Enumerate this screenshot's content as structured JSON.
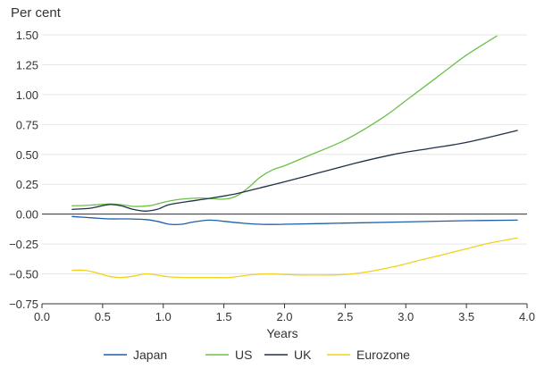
{
  "chart_data": {
    "type": "line",
    "ylabel": "Per cent",
    "xlabel": "Years",
    "xlim": [
      0.0,
      4.0
    ],
    "ylim": [
      -0.75,
      1.5
    ],
    "xticks": [
      "0.0",
      "0.5",
      "1.0",
      "1.5",
      "2.0",
      "2.5",
      "3.0",
      "3.5",
      "4.0"
    ],
    "yticks": [
      "1.50",
      "1.25",
      "1.00",
      "0.75",
      "0.50",
      "0.25",
      "0.00",
      "−0.25",
      "−0.50",
      "−0.75"
    ],
    "grid": "horizontal",
    "zero_line": true,
    "legend_position": "bottom",
    "series": [
      {
        "name": "Japan",
        "color": "#1f5fa8",
        "points": [
          [
            0.25,
            -0.02
          ],
          [
            0.4,
            -0.03
          ],
          [
            0.55,
            -0.04
          ],
          [
            0.7,
            -0.04
          ],
          [
            0.85,
            -0.045
          ],
          [
            0.95,
            -0.06
          ],
          [
            1.05,
            -0.085
          ],
          [
            1.15,
            -0.085
          ],
          [
            1.25,
            -0.065
          ],
          [
            1.38,
            -0.05
          ],
          [
            1.5,
            -0.06
          ],
          [
            1.65,
            -0.075
          ],
          [
            1.8,
            -0.085
          ],
          [
            2.0,
            -0.085
          ],
          [
            2.5,
            -0.075
          ],
          [
            3.0,
            -0.065
          ],
          [
            3.5,
            -0.055
          ],
          [
            3.92,
            -0.05
          ]
        ]
      },
      {
        "name": "US",
        "color": "#6cc04a",
        "points": [
          [
            0.25,
            0.07
          ],
          [
            0.4,
            0.075
          ],
          [
            0.55,
            0.085
          ],
          [
            0.65,
            0.08
          ],
          [
            0.75,
            0.065
          ],
          [
            0.88,
            0.07
          ],
          [
            0.95,
            0.085
          ],
          [
            1.05,
            0.11
          ],
          [
            1.15,
            0.125
          ],
          [
            1.3,
            0.135
          ],
          [
            1.4,
            0.13
          ],
          [
            1.5,
            0.125
          ],
          [
            1.6,
            0.15
          ],
          [
            1.7,
            0.22
          ],
          [
            1.8,
            0.31
          ],
          [
            1.9,
            0.37
          ],
          [
            2.0,
            0.405
          ],
          [
            2.2,
            0.49
          ],
          [
            2.5,
            0.62
          ],
          [
            2.8,
            0.8
          ],
          [
            3.0,
            0.95
          ],
          [
            3.25,
            1.14
          ],
          [
            3.5,
            1.33
          ],
          [
            3.75,
            1.49
          ]
        ]
      },
      {
        "name": "UK",
        "color": "#1f3048",
        "points": [
          [
            0.25,
            0.04
          ],
          [
            0.4,
            0.05
          ],
          [
            0.55,
            0.08
          ],
          [
            0.65,
            0.07
          ],
          [
            0.75,
            0.04
          ],
          [
            0.85,
            0.025
          ],
          [
            0.95,
            0.04
          ],
          [
            1.05,
            0.08
          ],
          [
            1.2,
            0.105
          ],
          [
            1.4,
            0.135
          ],
          [
            1.6,
            0.17
          ],
          [
            1.8,
            0.22
          ],
          [
            2.0,
            0.27
          ],
          [
            2.3,
            0.35
          ],
          [
            2.6,
            0.43
          ],
          [
            2.9,
            0.5
          ],
          [
            3.2,
            0.55
          ],
          [
            3.5,
            0.6
          ],
          [
            3.92,
            0.7
          ]
        ]
      },
      {
        "name": "Eurozone",
        "color": "#f2d21a",
        "points": [
          [
            0.25,
            -0.47
          ],
          [
            0.35,
            -0.47
          ],
          [
            0.45,
            -0.49
          ],
          [
            0.55,
            -0.52
          ],
          [
            0.65,
            -0.53
          ],
          [
            0.75,
            -0.52
          ],
          [
            0.85,
            -0.5
          ],
          [
            0.95,
            -0.51
          ],
          [
            1.05,
            -0.525
          ],
          [
            1.2,
            -0.53
          ],
          [
            1.4,
            -0.53
          ],
          [
            1.55,
            -0.53
          ],
          [
            1.7,
            -0.51
          ],
          [
            1.85,
            -0.5
          ],
          [
            2.0,
            -0.505
          ],
          [
            2.2,
            -0.51
          ],
          [
            2.5,
            -0.505
          ],
          [
            2.7,
            -0.48
          ],
          [
            2.9,
            -0.44
          ],
          [
            3.1,
            -0.39
          ],
          [
            3.3,
            -0.34
          ],
          [
            3.5,
            -0.29
          ],
          [
            3.7,
            -0.24
          ],
          [
            3.92,
            -0.2
          ]
        ]
      }
    ]
  }
}
